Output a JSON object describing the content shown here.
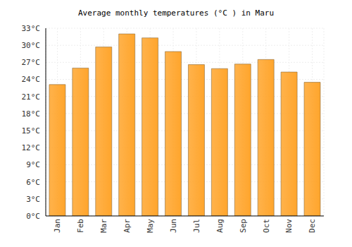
{
  "chart_data": {
    "type": "bar",
    "title": "Average monthly temperatures (°C ) in Maru",
    "categories": [
      "Jan",
      "Feb",
      "Mar",
      "Apr",
      "May",
      "Jun",
      "Jul",
      "Aug",
      "Sep",
      "Oct",
      "Nov",
      "Dec"
    ],
    "values": [
      23.1,
      26.0,
      29.7,
      32.0,
      31.3,
      28.9,
      26.6,
      25.9,
      26.7,
      27.5,
      25.3,
      23.5
    ],
    "color": "#ffa52c",
    "ylim": [
      0,
      33
    ],
    "yticks": [
      {
        "value": 0,
        "label": "0°C"
      },
      {
        "value": 3,
        "label": "3°C"
      },
      {
        "value": 6,
        "label": "6°C"
      },
      {
        "value": 9,
        "label": "9°C"
      },
      {
        "value": 12,
        "label": "12°C"
      },
      {
        "value": 15,
        "label": "15°C"
      },
      {
        "value": 18,
        "label": "18°C"
      },
      {
        "value": 21,
        "label": "21°C"
      },
      {
        "value": 24,
        "label": "24°C"
      },
      {
        "value": 27,
        "label": "27°C"
      },
      {
        "value": 30,
        "label": "30°C"
      },
      {
        "value": 33,
        "label": "33°C"
      }
    ],
    "grid": true
  }
}
